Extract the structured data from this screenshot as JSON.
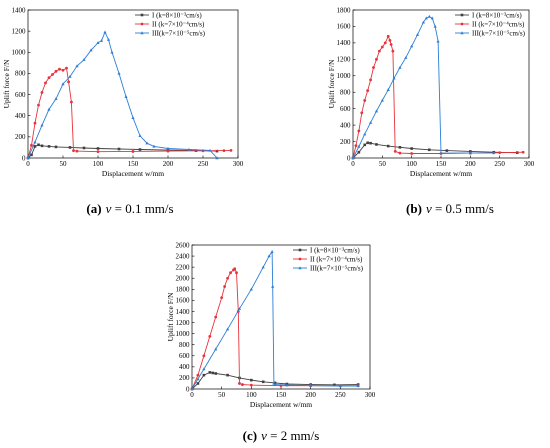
{
  "colors": {
    "I": "#404040",
    "II": "#e8323c",
    "III": "#2c7fd6"
  },
  "chart_data": [
    {
      "type": "line",
      "caption": {
        "label": "(a)",
        "var": "v",
        "rest": " = 0.1 mm/s"
      },
      "xlabel": "Displacement w/mm",
      "ylabel": "Uplift force F/N",
      "xlim": [
        0,
        300
      ],
      "ylim": [
        0,
        1400
      ],
      "xticks": [
        0,
        50,
        100,
        150,
        200,
        250,
        300
      ],
      "yticks": [
        0,
        200,
        400,
        600,
        800,
        1000,
        1200,
        1400
      ],
      "legend": "top-right",
      "series": [
        {
          "name": "I (k=8×10⁻³cm/s)",
          "marker": "square",
          "x": [
            0,
            5,
            10,
            15,
            20,
            30,
            40,
            60,
            80,
            100,
            130,
            160,
            200,
            240,
            270
          ],
          "y": [
            0,
            30,
            110,
            125,
            115,
            110,
            105,
            100,
            95,
            90,
            85,
            80,
            75,
            70,
            65
          ]
        },
        {
          "name": "II (k=7×10⁻⁴cm/s)",
          "marker": "circle",
          "x": [
            0,
            5,
            10,
            15,
            20,
            25,
            30,
            35,
            40,
            45,
            50,
            55,
            58,
            62,
            65,
            70,
            100,
            150,
            200,
            250,
            280,
            290
          ],
          "y": [
            0,
            120,
            330,
            500,
            620,
            710,
            760,
            790,
            820,
            840,
            830,
            850,
            720,
            530,
            70,
            65,
            60,
            62,
            65,
            68,
            70,
            72
          ]
        },
        {
          "name": "III(k=7×10⁻⁵cm/s)",
          "marker": "triangle",
          "x": [
            0,
            10,
            20,
            30,
            40,
            50,
            60,
            70,
            80,
            90,
            100,
            105,
            110,
            115,
            120,
            130,
            140,
            150,
            160,
            170,
            180,
            200,
            230,
            260,
            270
          ],
          "y": [
            0,
            150,
            310,
            460,
            560,
            700,
            770,
            870,
            930,
            1020,
            1090,
            1110,
            1190,
            1120,
            1000,
            800,
            580,
            380,
            210,
            140,
            110,
            90,
            80,
            72,
            0
          ]
        }
      ]
    },
    {
      "type": "line",
      "caption": {
        "label": "(b)",
        "var": "v",
        "rest": " = 0.5 mm/s"
      },
      "xlabel": "Displacement w/mm",
      "ylabel": "Uplift force F/N",
      "xlim": [
        0,
        300
      ],
      "ylim": [
        0,
        1800
      ],
      "xticks": [
        0,
        50,
        100,
        150,
        200,
        250,
        300
      ],
      "yticks": [
        0,
        200,
        400,
        600,
        800,
        1000,
        1200,
        1400,
        1600,
        1800
      ],
      "legend": "top-right",
      "series": [
        {
          "name": "I (k=8×10⁻³cm/s)",
          "marker": "square",
          "x": [
            0,
            10,
            20,
            25,
            30,
            40,
            60,
            80,
            100,
            130,
            160,
            200,
            240,
            280
          ],
          "y": [
            0,
            70,
            160,
            185,
            180,
            165,
            145,
            130,
            115,
            100,
            90,
            80,
            70,
            65
          ]
        },
        {
          "name": "II (k=7×10⁻⁴cm/s)",
          "marker": "circle",
          "x": [
            0,
            5,
            10,
            15,
            20,
            25,
            30,
            35,
            40,
            45,
            50,
            55,
            60,
            63,
            65,
            68,
            72,
            80,
            100,
            150,
            200,
            250,
            290
          ],
          "y": [
            0,
            150,
            330,
            550,
            700,
            820,
            950,
            1100,
            1200,
            1300,
            1350,
            1400,
            1480,
            1430,
            1380,
            1300,
            80,
            60,
            55,
            55,
            60,
            65,
            70
          ]
        },
        {
          "name": "III(k=7×10⁻⁵cm/s)",
          "marker": "triangle",
          "x": [
            0,
            10,
            20,
            30,
            40,
            50,
            60,
            70,
            80,
            90,
            100,
            110,
            120,
            125,
            130,
            135,
            140,
            145,
            150,
            200,
            240
          ],
          "y": [
            0,
            140,
            290,
            430,
            570,
            700,
            830,
            970,
            1100,
            1220,
            1360,
            1500,
            1650,
            1700,
            1720,
            1700,
            1600,
            1420,
            60,
            60,
            62
          ]
        }
      ]
    },
    {
      "type": "line",
      "caption": {
        "label": "(c)",
        "var": "v",
        "rest": " = 2 mm/s"
      },
      "xlabel": "Displacement w/mm",
      "ylabel": "Uplift force F/N",
      "xlim": [
        0,
        300
      ],
      "ylim": [
        0,
        2600
      ],
      "xticks": [
        0,
        50,
        100,
        150,
        200,
        250,
        300
      ],
      "yticks": [
        0,
        200,
        400,
        600,
        800,
        1000,
        1200,
        1400,
        1600,
        1800,
        2000,
        2200,
        2400,
        2600
      ],
      "legend": "top-right",
      "series": [
        {
          "name": "I (k=8×10⁻³cm/s)",
          "marker": "square",
          "x": [
            0,
            10,
            20,
            30,
            35,
            40,
            60,
            80,
            100,
            120,
            140,
            160,
            200,
            240,
            280
          ],
          "y": [
            0,
            100,
            250,
            300,
            290,
            280,
            250,
            200,
            160,
            130,
            110,
            90,
            80,
            75,
            80
          ]
        },
        {
          "name": "II (k=7×10⁻⁴cm/s)",
          "marker": "circle",
          "x": [
            0,
            10,
            20,
            30,
            40,
            50,
            55,
            60,
            65,
            70,
            72,
            75,
            78,
            80,
            85,
            100,
            150,
            200,
            250,
            280
          ],
          "y": [
            0,
            250,
            600,
            950,
            1300,
            1650,
            1850,
            2000,
            2100,
            2150,
            2170,
            2100,
            1400,
            100,
            80,
            70,
            60,
            60,
            60,
            60
          ]
        },
        {
          "name": "III(k=7×10⁻⁵cm/s)",
          "marker": "triangle",
          "x": [
            0,
            10,
            20,
            40,
            60,
            80,
            100,
            120,
            130,
            135,
            136,
            138,
            140,
            160,
            200,
            250,
            280
          ],
          "y": [
            0,
            180,
            360,
            720,
            1080,
            1450,
            1800,
            2200,
            2400,
            2480,
            1850,
            100,
            80,
            70,
            60,
            55,
            55
          ]
        }
      ]
    }
  ]
}
